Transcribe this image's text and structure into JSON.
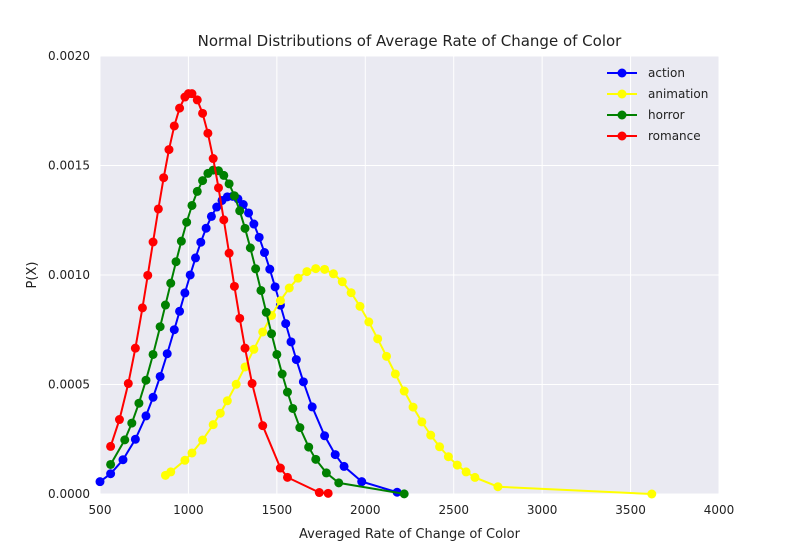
{
  "chart_data": {
    "type": "line",
    "title": "Normal Distributions of Average Rate of Change of Color",
    "xlabel": "Averaged Rate of Change of Color",
    "ylabel": "P(X)",
    "xlim": [
      500,
      4000
    ],
    "ylim": [
      0,
      0.002
    ],
    "x_ticks": [
      "500",
      "1000",
      "1500",
      "2000",
      "2500",
      "3000",
      "3500",
      "4000"
    ],
    "y_ticks": [
      "0.0000",
      "0.0005",
      "0.0010",
      "0.0015",
      "0.0020"
    ],
    "grid": true,
    "legend_position": "top-right",
    "marker": "circle",
    "background_color": "#eaeaf2",
    "grid_color": "#ffffff",
    "series": [
      {
        "name": "action",
        "color": "#0000ff",
        "mean": 1240,
        "peak": 0.00136,
        "x": [
          500,
          560,
          630,
          700,
          760,
          800,
          840,
          880,
          920,
          950,
          980,
          1010,
          1040,
          1070,
          1100,
          1130,
          1160,
          1190,
          1220,
          1250,
          1280,
          1310,
          1340,
          1370,
          1400,
          1430,
          1460,
          1490,
          1520,
          1550,
          1580,
          1610,
          1650,
          1700,
          1770,
          1830,
          1880,
          1980,
          2180
        ]
      },
      {
        "name": "animation",
        "color": "#ffff00",
        "mean": 1735,
        "peak": 0.00103,
        "x": [
          870,
          900,
          980,
          1020,
          1080,
          1140,
          1180,
          1220,
          1270,
          1320,
          1370,
          1420,
          1470,
          1520,
          1570,
          1620,
          1670,
          1720,
          1770,
          1820,
          1870,
          1920,
          1970,
          2020,
          2070,
          2120,
          2170,
          2220,
          2270,
          2320,
          2370,
          2420,
          2470,
          2520,
          2570,
          2620,
          2750,
          3620
        ]
      },
      {
        "name": "horror",
        "color": "#008000",
        "mean": 1150,
        "peak": 0.00148,
        "x": [
          560,
          640,
          680,
          720,
          760,
          800,
          840,
          870,
          900,
          930,
          960,
          990,
          1020,
          1050,
          1080,
          1110,
          1140,
          1170,
          1200,
          1230,
          1260,
          1290,
          1320,
          1350,
          1380,
          1410,
          1440,
          1470,
          1500,
          1530,
          1560,
          1590,
          1630,
          1680,
          1720,
          1780,
          1850,
          2220
        ]
      },
      {
        "name": "romance",
        "color": "#ff0000",
        "mean": 1010,
        "peak": 0.00183,
        "x": [
          560,
          610,
          660,
          700,
          740,
          770,
          800,
          830,
          860,
          890,
          920,
          950,
          980,
          1000,
          1020,
          1050,
          1080,
          1110,
          1140,
          1170,
          1200,
          1230,
          1260,
          1290,
          1320,
          1360,
          1420,
          1520,
          1560,
          1740,
          1790
        ]
      }
    ]
  }
}
